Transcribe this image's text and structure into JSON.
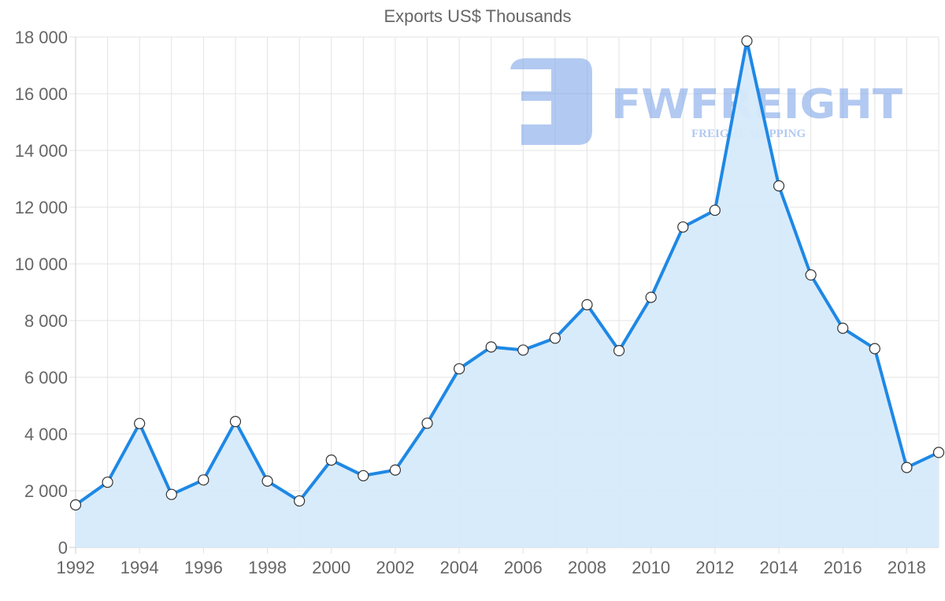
{
  "chart_data": {
    "type": "area",
    "title": "Exports US$ Thousands",
    "xlabel": "",
    "ylabel": "",
    "x": [
      1992,
      1993,
      1994,
      1995,
      1996,
      1997,
      1998,
      1999,
      2000,
      2001,
      2002,
      2003,
      2004,
      2005,
      2006,
      2007,
      2008,
      2009,
      2010,
      2011,
      2012,
      2013,
      2014,
      2015,
      2016,
      2017,
      2018,
      2019
    ],
    "series": [
      {
        "name": "Exports US$ Thousands",
        "values": [
          1500,
          2300,
          4370,
          1870,
          2380,
          4440,
          2340,
          1640,
          3080,
          2530,
          2730,
          4380,
          6300,
          7070,
          6960,
          7380,
          8560,
          6940,
          8820,
          11300,
          11890,
          17860,
          12750,
          9610,
          7730,
          7010,
          2820,
          3350
        ],
        "color": "#1E88E5",
        "fill": "#D6EAFB"
      }
    ],
    "ylim": [
      0,
      18000
    ],
    "yticks": [
      "0",
      "2 000",
      "4 000",
      "6 000",
      "8 000",
      "10 000",
      "12 000",
      "14 000",
      "16 000",
      "18 000"
    ],
    "xticks": [
      "1992",
      "1994",
      "1996",
      "1998",
      "2000",
      "2002",
      "2004",
      "2006",
      "2008",
      "2010",
      "2012",
      "2014",
      "2016",
      "2018"
    ],
    "grid": true,
    "legend": "none"
  },
  "watermark": {
    "brand": "FWFREIGHT",
    "tagline": "FREIGHT SHIPPING",
    "color": "#8AB1EC"
  }
}
